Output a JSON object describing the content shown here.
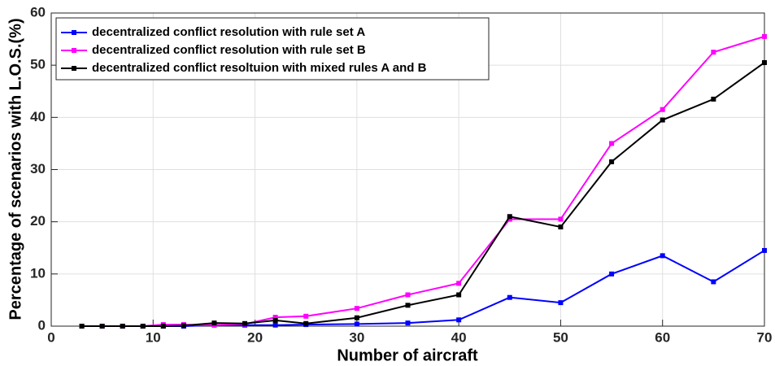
{
  "chart_data": {
    "type": "line",
    "x_label": "Number of aircraft",
    "y_label": "Percentage of scenarios with L.O.S.(%)",
    "x": [
      3,
      5,
      7,
      9,
      11,
      13,
      16,
      19,
      22,
      25,
      30,
      35,
      40,
      45,
      50,
      55,
      60,
      65,
      70
    ],
    "series": [
      {
        "name": "decentralized conflict resolution with rule set A",
        "color": "#0000ff",
        "values": [
          0,
          0,
          0,
          0,
          0,
          0,
          0.2,
          0.2,
          0.2,
          0.3,
          0.4,
          0.6,
          1.2,
          5.5,
          4.5,
          10,
          13.5,
          8.5,
          14.5
        ]
      },
      {
        "name": "decentralized conflict resolution with rule set B",
        "color": "#ff00ff",
        "values": [
          0,
          0,
          0,
          0,
          0.3,
          0.3,
          0.2,
          0.4,
          1.7,
          1.9,
          3.4,
          6,
          8.2,
          20.5,
          20.5,
          35,
          41.5,
          52.5,
          55.5
        ]
      },
      {
        "name": "decentralized conflict resoltuion with mixed rules A and B",
        "color": "#000000",
        "values": [
          0,
          0,
          0,
          0,
          0,
          0.1,
          0.6,
          0.5,
          1.1,
          0.5,
          1.6,
          4,
          6,
          21,
          19,
          31.5,
          39.5,
          43.5,
          50.5
        ]
      }
    ],
    "xlim": [
      0,
      70
    ],
    "xticks": [
      0,
      10,
      20,
      30,
      40,
      50,
      60,
      70
    ],
    "ylim": [
      0,
      60
    ],
    "yticks": [
      0,
      10,
      20,
      30,
      40,
      50,
      60
    ],
    "grid": true,
    "legend": "upper left"
  }
}
